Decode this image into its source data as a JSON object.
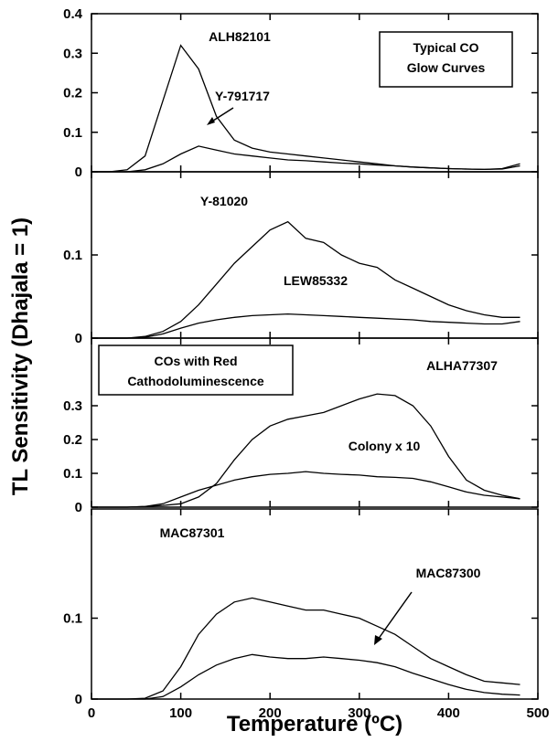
{
  "ylabel": "TL Sensitivity (Dhajala = 1)",
  "chart_data": [
    {
      "type": "line",
      "annotation": [
        "Typical CO",
        "Glow Curves"
      ],
      "x": [
        0,
        20,
        40,
        60,
        80,
        100,
        120,
        140,
        160,
        180,
        200,
        220,
        240,
        260,
        280,
        300,
        320,
        340,
        360,
        380,
        400,
        420,
        440,
        460,
        480
      ],
      "series": [
        {
          "name": "ALH82101",
          "color": "#000000",
          "values": [
            0,
            0,
            0.005,
            0.04,
            0.18,
            0.32,
            0.26,
            0.14,
            0.08,
            0.06,
            0.05,
            0.045,
            0.04,
            0.035,
            0.03,
            0.025,
            0.02,
            0.015,
            0.012,
            0.01,
            0.008,
            0.007,
            0.006,
            0.008,
            0.02
          ]
        },
        {
          "name": "Y-791717",
          "color": "#000000",
          "values": [
            0,
            0,
            0,
            0.005,
            0.02,
            0.045,
            0.065,
            0.055,
            0.045,
            0.04,
            0.035,
            0.03,
            0.028,
            0.025,
            0.022,
            0.02,
            0.017,
            0.015,
            0.012,
            0.01,
            0.008,
            0.007,
            0.006,
            0.007,
            0.015
          ]
        }
      ],
      "xlim": [
        0,
        500
      ],
      "xticks": [
        0,
        100,
        200,
        300,
        400,
        500
      ],
      "ylim": [
        0,
        0.4
      ],
      "yticks": [
        0,
        0.1,
        0.2,
        0.3,
        0.4
      ]
    },
    {
      "type": "line",
      "x": [
        0,
        20,
        40,
        60,
        80,
        100,
        120,
        140,
        160,
        180,
        200,
        220,
        240,
        260,
        280,
        300,
        320,
        340,
        360,
        380,
        400,
        420,
        440,
        460,
        480
      ],
      "series": [
        {
          "name": "Y-81020",
          "color": "#000000",
          "values": [
            0,
            0,
            0,
            0.002,
            0.008,
            0.02,
            0.04,
            0.065,
            0.09,
            0.11,
            0.13,
            0.14,
            0.12,
            0.115,
            0.1,
            0.09,
            0.085,
            0.07,
            0.06,
            0.05,
            0.04,
            0.033,
            0.028,
            0.025,
            0.025
          ]
        },
        {
          "name": "LEW85332",
          "color": "#000000",
          "values": [
            0,
            0,
            0,
            0.001,
            0.005,
            0.012,
            0.018,
            0.022,
            0.025,
            0.027,
            0.028,
            0.029,
            0.028,
            0.027,
            0.026,
            0.025,
            0.024,
            0.023,
            0.022,
            0.02,
            0.019,
            0.018,
            0.017,
            0.017,
            0.02
          ]
        }
      ],
      "xlim": [
        0,
        500
      ],
      "xticks": [
        0,
        100,
        200,
        300,
        400,
        500
      ],
      "ylim": [
        0,
        0.2
      ],
      "yticks": [
        0,
        0.1
      ]
    },
    {
      "type": "line",
      "annotation": [
        "COs with Red",
        "Cathodoluminescence"
      ],
      "x": [
        0,
        20,
        40,
        60,
        80,
        100,
        120,
        140,
        160,
        180,
        200,
        220,
        240,
        260,
        280,
        300,
        320,
        340,
        360,
        380,
        400,
        420,
        440,
        460,
        480
      ],
      "series": [
        {
          "name": "ALHA77307",
          "color": "#000000",
          "values": [
            0,
            0,
            0,
            0.002,
            0.005,
            0.01,
            0.03,
            0.07,
            0.14,
            0.2,
            0.24,
            0.26,
            0.27,
            0.28,
            0.3,
            0.32,
            0.335,
            0.33,
            0.3,
            0.24,
            0.15,
            0.08,
            0.05,
            0.035,
            0.025
          ]
        },
        {
          "name": "Colony x 10",
          "color": "#000000",
          "values": [
            0,
            0,
            0,
            0.002,
            0.01,
            0.03,
            0.05,
            0.065,
            0.08,
            0.09,
            0.097,
            0.1,
            0.105,
            0.1,
            0.097,
            0.095,
            0.09,
            0.088,
            0.085,
            0.075,
            0.06,
            0.045,
            0.035,
            0.03,
            0.025
          ]
        }
      ],
      "xlim": [
        0,
        500
      ],
      "xticks": [
        0,
        100,
        200,
        300,
        400,
        500
      ],
      "ylim": [
        0,
        0.5
      ],
      "yticks": [
        0,
        0.1,
        0.2,
        0.3
      ]
    },
    {
      "type": "line",
      "xlabel": "Temperature (ºC)",
      "x": [
        0,
        20,
        40,
        60,
        80,
        100,
        120,
        140,
        160,
        180,
        200,
        220,
        240,
        260,
        280,
        300,
        320,
        340,
        360,
        380,
        400,
        420,
        440,
        460,
        480
      ],
      "series": [
        {
          "name": "MAC87301",
          "color": "#000000",
          "values": [
            0,
            0,
            0,
            0.001,
            0.01,
            0.04,
            0.08,
            0.105,
            0.12,
            0.125,
            0.12,
            0.115,
            0.11,
            0.11,
            0.105,
            0.1,
            0.09,
            0.08,
            0.065,
            0.05,
            0.04,
            0.03,
            0.022,
            0.02,
            0.018
          ]
        },
        {
          "name": "MAC87300",
          "color": "#000000",
          "values": [
            0,
            0,
            0,
            0,
            0.003,
            0.015,
            0.03,
            0.042,
            0.05,
            0.055,
            0.052,
            0.05,
            0.05,
            0.052,
            0.05,
            0.048,
            0.045,
            0.04,
            0.032,
            0.025,
            0.018,
            0.012,
            0.008,
            0.006,
            0.005
          ]
        }
      ],
      "xlim": [
        0,
        500
      ],
      "xticks": [
        0,
        100,
        200,
        300,
        400,
        500
      ],
      "ylim": [
        0,
        0.235
      ],
      "yticks": [
        0,
        0.1
      ]
    }
  ]
}
